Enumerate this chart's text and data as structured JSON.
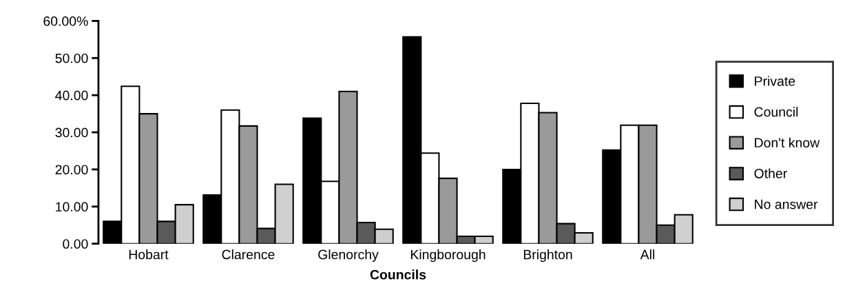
{
  "chart_data": {
    "type": "bar",
    "xlabel": "Councils",
    "categories": [
      "Hobart",
      "Clarence",
      "Glenorchy",
      "Kingborough",
      "Brighton",
      "All"
    ],
    "series": [
      {
        "name": "Private",
        "color": "#000000",
        "values": [
          6.0,
          13.1,
          33.8,
          55.7,
          20.0,
          25.2
        ]
      },
      {
        "name": "Council",
        "color": "#ffffff",
        "values": [
          42.4,
          36.0,
          16.8,
          24.4,
          37.8,
          31.9
        ]
      },
      {
        "name": "Don't know",
        "color": "#9a9a9a",
        "values": [
          35.0,
          31.7,
          41.0,
          17.6,
          35.3,
          31.9
        ]
      },
      {
        "name": "Other",
        "color": "#5a5a5a",
        "values": [
          6.0,
          4.1,
          5.7,
          2.0,
          5.4,
          5.0
        ]
      },
      {
        "name": "No answer",
        "color": "#cfcfcf",
        "values": [
          10.5,
          16.0,
          3.9,
          2.0,
          2.9,
          7.8
        ]
      }
    ],
    "ylim": [
      0,
      60
    ],
    "yticks": [
      {
        "value": 0,
        "label": "0.00"
      },
      {
        "value": 10,
        "label": "10.00"
      },
      {
        "value": 20,
        "label": "20.00"
      },
      {
        "value": 30,
        "label": "30.00"
      },
      {
        "value": 40,
        "label": "40.00"
      },
      {
        "value": 50,
        "label": "50.00"
      },
      {
        "value": 60,
        "label": "60.00%"
      }
    ],
    "grid": false,
    "legend": "right"
  }
}
